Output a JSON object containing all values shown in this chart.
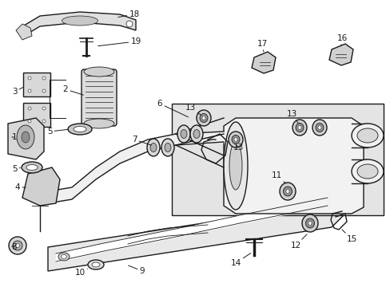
{
  "bg_color": "#ffffff",
  "line_color": "#1a1a1a",
  "fig_width": 4.89,
  "fig_height": 3.6,
  "dpi": 100,
  "gray_box": "#e8e8e8",
  "gray_part": "#d4d4d4",
  "white_part": "#f5f5f5"
}
